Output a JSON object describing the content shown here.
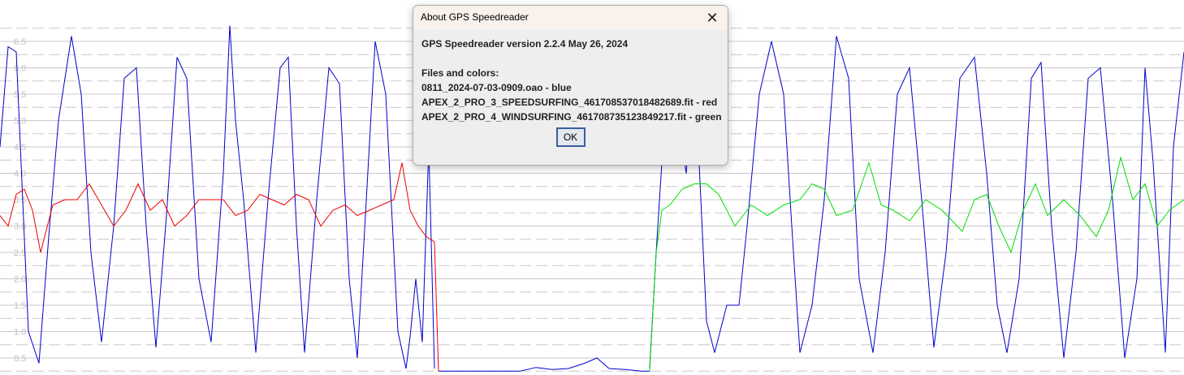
{
  "dialog": {
    "title": "About GPS Speedreader",
    "version_line": "GPS Speedreader version 2.2.4 May 26, 2024",
    "files_heading": "Files and colors:",
    "files": [
      "0811_2024-07-03-0909.oao - blue",
      "APEX_2_PRO_3_SPEEDSURFING_461708537018482689.fit - red",
      "APEX_2_PRO_4_WINDSURFING_461708735123849217.fit - green"
    ],
    "ok_label": "OK",
    "close_icon": "close-icon"
  },
  "chart_data": {
    "type": "line",
    "y_tick_labels": [
      "6.5",
      "6.0",
      "5.5",
      "5.0",
      "4.5",
      "4.0",
      "3.5",
      "3.0",
      "2.5",
      "2.0",
      "1.5",
      "1.0",
      "0.5"
    ],
    "ylim": [
      0.3,
      6.75
    ],
    "grid": true,
    "series": [
      {
        "color": "#0000cc",
        "segments": [
          {
            "x": [
              0,
              10,
              20,
              35,
              48,
              60,
              72,
              88,
              100,
              112,
              125,
              140,
              153,
              168,
              180,
              192,
              205,
              218,
              230,
              245,
              260,
              275,
              283,
              290,
              300,
              315,
              330,
              345,
              355,
              365,
              375,
              390,
              405,
              418,
              430,
              440,
              450,
              462,
              475,
              490,
              500,
              505,
              512,
              520,
              528,
              535
            ],
            "y": [
              4.5,
              6.4,
              6.3,
              1.0,
              0.4,
              2.8,
              5.0,
              6.6,
              5.5,
              2.5,
              0.8,
              3.0,
              5.8,
              6.0,
              3.0,
              0.7,
              3.2,
              6.2,
              5.8,
              2.0,
              0.8,
              4.0,
              6.8,
              5.0,
              3.5,
              0.6,
              3.5,
              6.0,
              6.2,
              3.0,
              0.6,
              3.5,
              6.0,
              5.7,
              2.0,
              0.5,
              3.2,
              6.5,
              5.5,
              1.0,
              0.3,
              0.9,
              2.0,
              0.8,
              4.5,
              0.3
            ]
          },
          {
            "x": [
              540,
              560,
              580,
              600,
              620,
              640,
              660,
              680,
              700,
              720,
              735,
              750,
              770,
              790,
              800
            ],
            "y": [
              0.25,
              0.25,
              0.25,
              0.25,
              0.25,
              0.25,
              0.32,
              0.28,
              0.3,
              0.4,
              0.5,
              0.3,
              0.28,
              0.25,
              0.25
            ]
          },
          {
            "x": [
              800,
              808,
              815,
              830,
              845,
              855,
              860,
              870,
              880,
              895,
              910,
              920,
              935,
              950,
              965,
              975,
              985,
              1000,
              1015,
              1030,
              1045,
              1058,
              1075,
              1090,
              1105,
              1120,
              1135,
              1150,
              1165,
              1182,
              1200,
              1215,
              1228,
              1240,
              1255,
              1270,
              1282,
              1295,
              1310,
              1325,
              1340,
              1355,
              1370,
              1385,
              1400,
              1410,
              1420,
              1435,
              1445,
              1458
            ],
            "y": [
              0.3,
              2.5,
              4.2,
              5.5,
              4.0,
              6.0,
              4.5,
              1.2,
              0.6,
              1.5,
              1.5,
              3.0,
              5.5,
              6.5,
              5.5,
              3.0,
              0.6,
              1.5,
              3.5,
              6.6,
              5.8,
              2.0,
              0.6,
              2.5,
              5.5,
              6.0,
              3.5,
              0.7,
              2.5,
              5.8,
              6.2,
              4.0,
              1.5,
              0.6,
              2.0,
              5.8,
              6.1,
              3.0,
              0.5,
              2.5,
              5.8,
              6.0,
              3.5,
              0.5,
              2.0,
              6.0,
              4.2,
              0.6,
              4.5,
              6.3
            ]
          }
        ]
      },
      {
        "color": "#ee0000",
        "segments": [
          {
            "x": [
              0,
              10,
              20,
              30,
              40,
              50,
              65,
              80,
              95,
              110,
              125,
              140,
              155,
              170,
              185,
              200,
              215,
              230,
              245,
              260,
              275,
              290,
              305,
              320,
              335,
              350,
              365,
              380,
              395,
              410,
              425,
              440,
              455,
              470,
              485,
              495,
              505,
              515,
              525,
              535,
              540
            ],
            "y": [
              3.2,
              3.0,
              3.6,
              3.7,
              3.3,
              2.5,
              3.4,
              3.5,
              3.5,
              3.8,
              3.4,
              3.0,
              3.3,
              3.8,
              3.3,
              3.5,
              3.0,
              3.2,
              3.5,
              3.5,
              3.5,
              3.2,
              3.3,
              3.6,
              3.5,
              3.4,
              3.6,
              3.5,
              3.0,
              3.3,
              3.4,
              3.2,
              3.3,
              3.4,
              3.5,
              4.2,
              3.3,
              3.0,
              2.8,
              2.7,
              0.25
            ]
          }
        ]
      },
      {
        "color": "#00dd00",
        "segments": [
          {
            "x": [
              800,
              808,
              815,
              825,
              840,
              855,
              870,
              885,
              905,
              925,
              945,
              965,
              985,
              1000,
              1015,
              1030,
              1050,
              1070,
              1085,
              1100,
              1120,
              1140,
              1160,
              1185,
              1200,
              1215,
              1230,
              1245,
              1260,
              1275,
              1290,
              1310,
              1330,
              1350,
              1365,
              1380,
              1395,
              1410,
              1425,
              1440,
              1458
            ],
            "y": [
              0.25,
              2.5,
              3.3,
              3.4,
              3.7,
              3.8,
              3.8,
              3.6,
              3.0,
              3.4,
              3.2,
              3.4,
              3.5,
              3.8,
              3.7,
              3.2,
              3.3,
              4.2,
              3.4,
              3.3,
              3.1,
              3.5,
              3.3,
              2.9,
              3.5,
              3.6,
              3.0,
              2.5,
              3.3,
              3.8,
              3.2,
              3.5,
              3.2,
              2.8,
              3.3,
              4.3,
              3.5,
              3.8,
              3.0,
              3.3,
              3.5
            ]
          }
        ]
      }
    ]
  }
}
